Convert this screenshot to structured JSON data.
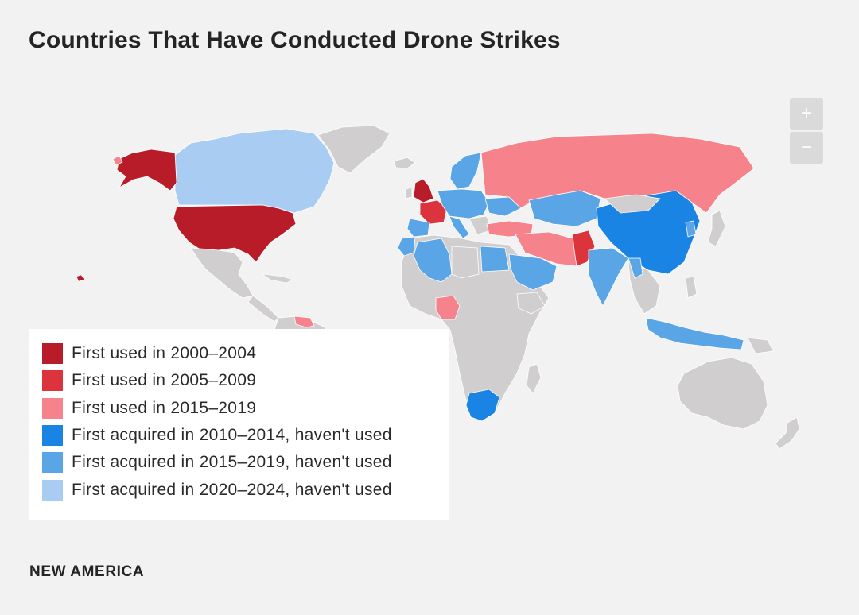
{
  "title": "Countries That Have Conducted Drone Strikes",
  "zoom": {
    "in_label": "+",
    "out_label": "−"
  },
  "colors": {
    "c2000": "#b81c28",
    "c2005": "#dc343d",
    "c2015": "#f6838b",
    "a2010": "#1a84e4",
    "a2015": "#5aa5e6",
    "a2020": "#a9cdf2",
    "none": "#d1cecf",
    "background": "#f2f2f3"
  },
  "legend": {
    "items": [
      {
        "label": "First used in 2000–2004",
        "color": "#b81c28"
      },
      {
        "label": "First used in 2005–2009",
        "color": "#dc343d"
      },
      {
        "label": "First used in 2015–2019",
        "color": "#f6838b"
      },
      {
        "label": "First acquired in 2010–2014, haven't used",
        "color": "#1a84e4"
      },
      {
        "label": "First acquired in 2015–2019, haven't used",
        "color": "#5aa5e6"
      },
      {
        "label": "First acquired in 2020–2024, haven't used",
        "color": "#a9cdf2"
      }
    ]
  },
  "brand": "NEW AMERICA"
}
